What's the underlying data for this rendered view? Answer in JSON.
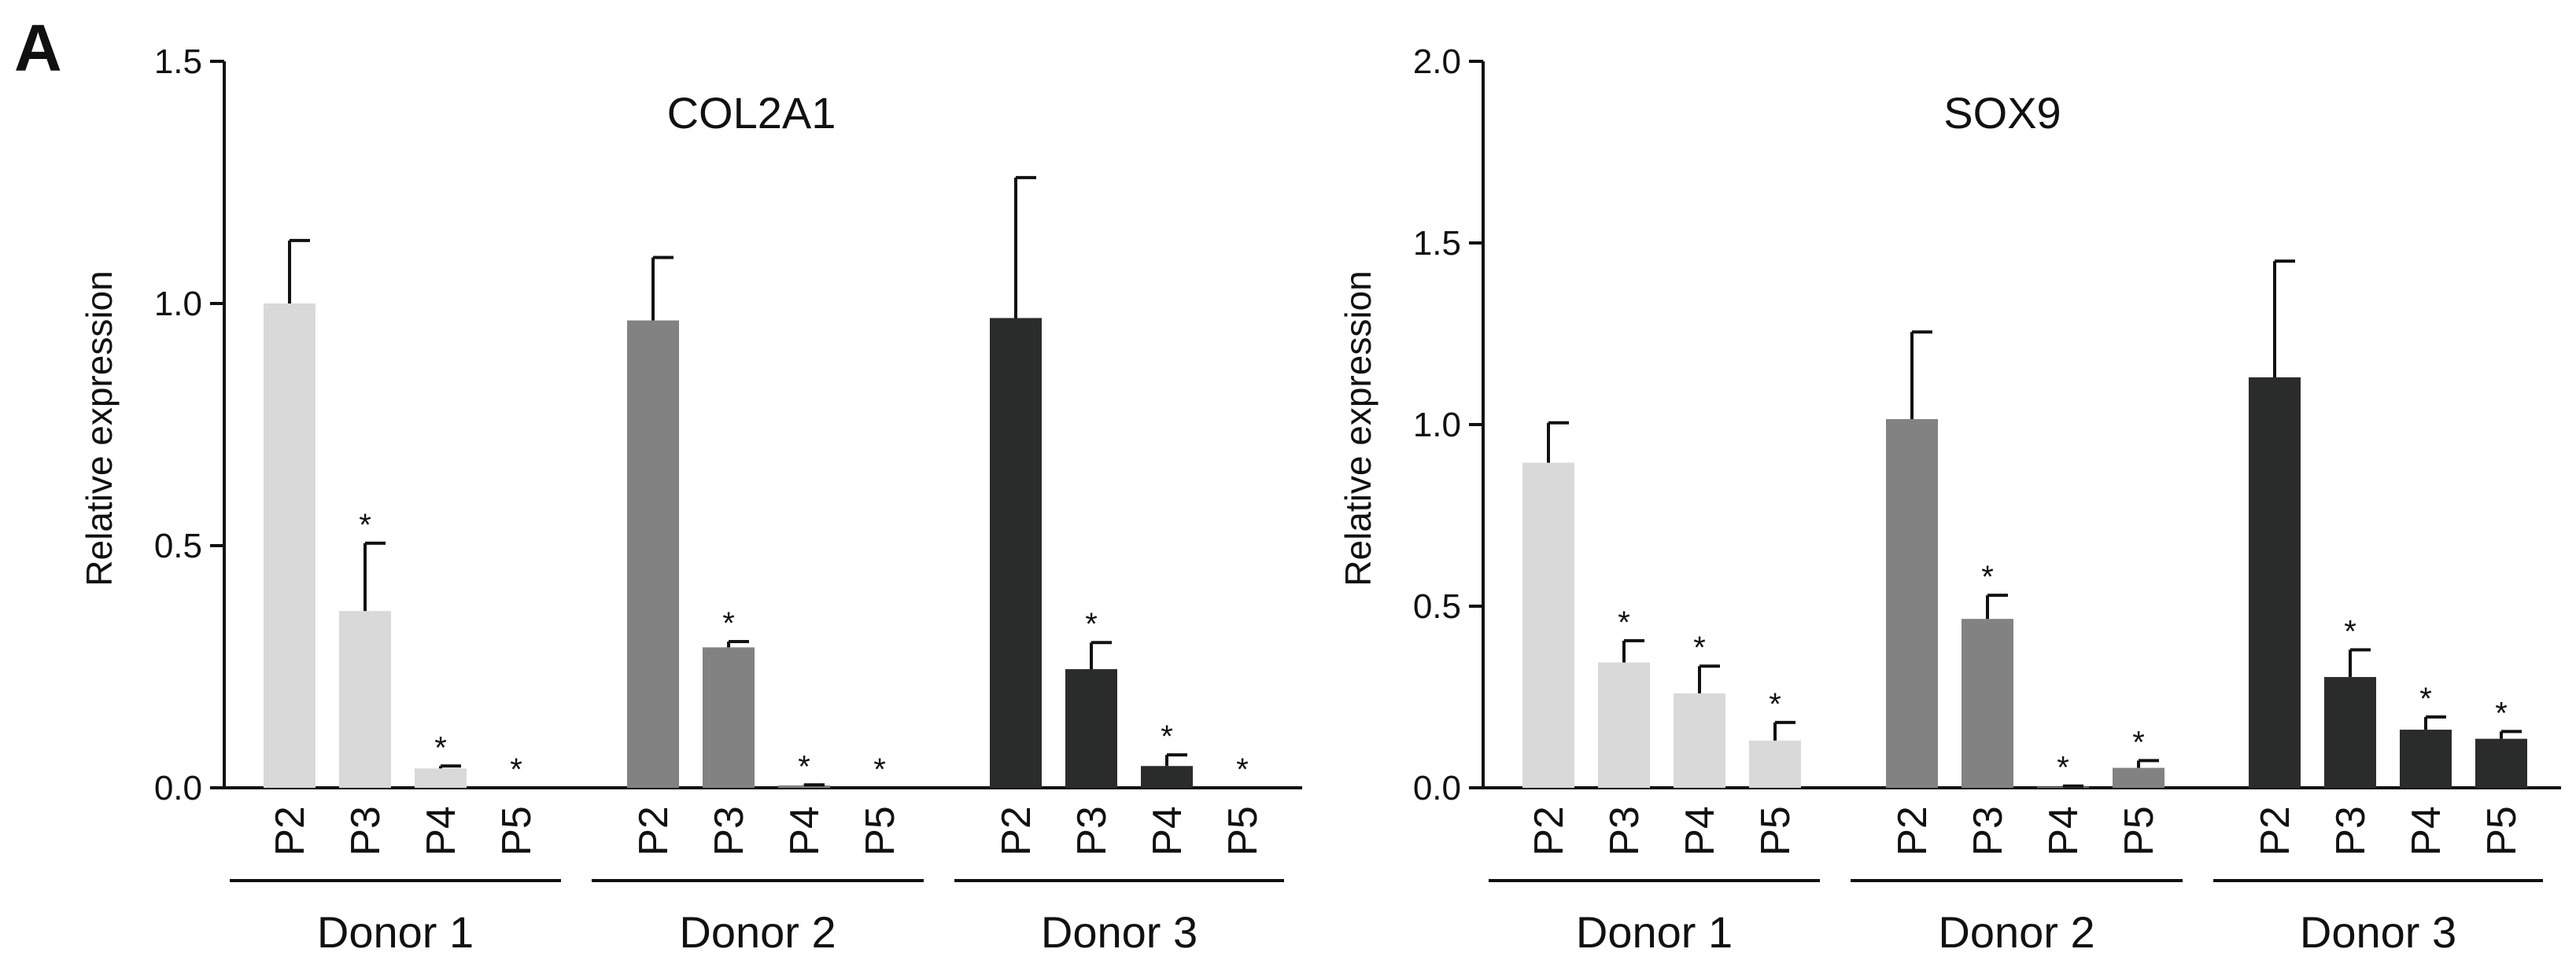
{
  "panel_label": "A",
  "colors": {
    "donor1": "#d9d9d9",
    "donor2": "#828282",
    "donor3": "#2a2c2b",
    "axis": "#111111"
  },
  "chart_data": [
    {
      "type": "bar",
      "title": "COL2A1",
      "ylabel": "Relative expression",
      "xlabel": "",
      "ylim": [
        0,
        1.5
      ],
      "yticks": [
        "0.0",
        "0.5",
        "1.0",
        "1.5"
      ],
      "categories": [
        "P2",
        "P3",
        "P4",
        "P5"
      ],
      "series": [
        {
          "name": "Donor 1",
          "values": [
            1.0,
            0.365,
            0.04,
            0.0
          ],
          "errors": [
            0.13,
            0.14,
            0.005,
            0.0
          ],
          "significant": [
            false,
            true,
            true,
            true
          ]
        },
        {
          "name": "Donor 2",
          "values": [
            0.965,
            0.29,
            0.005,
            0.0
          ],
          "errors": [
            0.13,
            0.012,
            0.001,
            0.0
          ],
          "significant": [
            false,
            true,
            true,
            true
          ]
        },
        {
          "name": "Donor 3",
          "values": [
            0.97,
            0.245,
            0.045,
            0.0
          ],
          "errors": [
            0.29,
            0.055,
            0.023,
            0.0
          ],
          "significant": [
            false,
            true,
            true,
            true
          ]
        }
      ],
      "significance_marker": "*"
    },
    {
      "type": "bar",
      "title": "SOX9",
      "ylabel": "Relative expression",
      "xlabel": "",
      "ylim": [
        0,
        2.0
      ],
      "yticks": [
        "0.0",
        "0.5",
        "1.0",
        "1.5",
        "2.0"
      ],
      "categories": [
        "P2",
        "P3",
        "P4",
        "P5"
      ],
      "series": [
        {
          "name": "Donor 1",
          "values": [
            0.895,
            0.345,
            0.26,
            0.13
          ],
          "errors": [
            0.11,
            0.06,
            0.075,
            0.05
          ],
          "significant": [
            false,
            true,
            true,
            true
          ]
        },
        {
          "name": "Donor 2",
          "values": [
            1.015,
            0.465,
            0.003,
            0.055
          ],
          "errors": [
            0.24,
            0.065,
            0.002,
            0.02
          ],
          "significant": [
            false,
            true,
            true,
            true
          ]
        },
        {
          "name": "Donor 3",
          "values": [
            1.13,
            0.305,
            0.16,
            0.135
          ],
          "errors": [
            0.32,
            0.075,
            0.035,
            0.02
          ],
          "significant": [
            false,
            true,
            true,
            true
          ]
        }
      ],
      "significance_marker": "*"
    }
  ]
}
